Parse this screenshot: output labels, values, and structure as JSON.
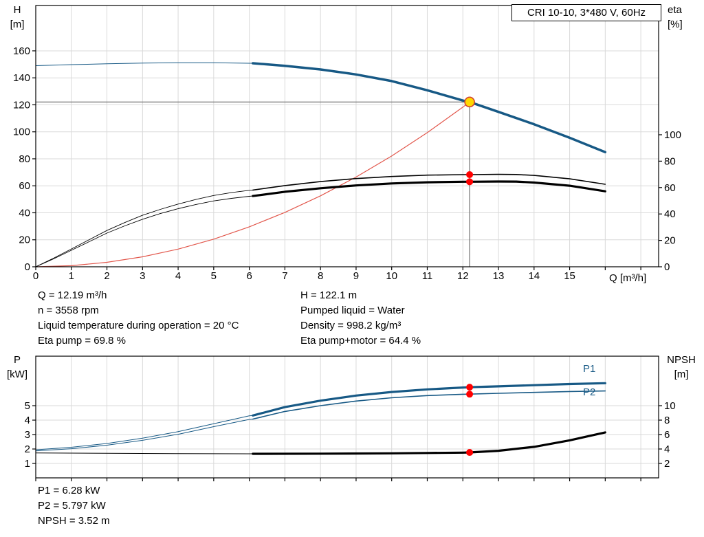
{
  "title_box": "CRI 10-10, 3*480 V, 60Hz",
  "axis_labels": {
    "h": "H",
    "h_unit": "[m]",
    "eta": "eta",
    "eta_unit": "[%]",
    "q": "Q [m³/h]",
    "p": "P",
    "p_unit": "[kW]",
    "npsh": "NPSH",
    "npsh_unit": "[m]"
  },
  "series_labels": {
    "p1": "P1",
    "p2": "P2"
  },
  "info_top_left": [
    "Q = 12.19 m³/h",
    "n = 3558 rpm",
    "Liquid temperature during operation = 20 °C",
    "Eta pump = 69.8 %"
  ],
  "info_top_right": [
    "H = 122.1 m",
    "Pumped liquid = Water",
    "Density = 998.2 kg/m³",
    "Eta pump+motor = 64.4 %"
  ],
  "info_bottom": [
    "P1 = 6.28 kW",
    "P2 = 5.797 kW",
    "NPSH = 3.52 m"
  ],
  "colors": {
    "curve_blue": "#175985",
    "curve_black": "#000000",
    "curve_red": "#e2574c",
    "dot_red": "#ff0000",
    "duty_fill": "#ffd800",
    "duty_stroke": "#d2422f",
    "grid": "#d9d9d9",
    "axis": "#000000",
    "crosshair": "#707070"
  },
  "chart_data": [
    {
      "id": "qh",
      "type": "line",
      "title": "CRI 10-10, 3*480 V, 60Hz",
      "x": {
        "label": "Q [m³/h]",
        "min": 0,
        "max": 17.5,
        "show_labels": true,
        "ticks": [
          0,
          1,
          2,
          3,
          4,
          5,
          6,
          7,
          8,
          9,
          10,
          11,
          12,
          13,
          14,
          15
        ],
        "grid": [
          1,
          2,
          3,
          4,
          5,
          6,
          7,
          8,
          9,
          10,
          11,
          12,
          13,
          14,
          15,
          16,
          17
        ]
      },
      "left_axis": {
        "label": "H [m]",
        "min": 0,
        "max": 193.6,
        "ticks": [
          0,
          20,
          40,
          60,
          80,
          100,
          120,
          140,
          160
        ]
      },
      "right_axis": {
        "label": "eta [%]",
        "min": 0,
        "max": 197.9,
        "ticks": [
          0,
          20,
          40,
          60,
          80,
          100
        ]
      },
      "crosshair": {
        "q": 12.19,
        "v": 122.1
      },
      "series": [
        {
          "name": "system-curve",
          "axis": "left",
          "color": "#e2574c",
          "width_thin": 1.2,
          "width_thick": 1.2,
          "split": 99,
          "points": [
            [
              0,
              0
            ],
            [
              1,
              0.8
            ],
            [
              2,
              3.3
            ],
            [
              3,
              7.4
            ],
            [
              4,
              13.1
            ],
            [
              5,
              20.5
            ],
            [
              6,
              29.6
            ],
            [
              7,
              40.3
            ],
            [
              8,
              52.6
            ],
            [
              9,
              66.5
            ],
            [
              10,
              82.1
            ],
            [
              11,
              99.4
            ],
            [
              12,
              118.3
            ],
            [
              12.19,
              122.1
            ]
          ]
        },
        {
          "name": "eta-pump",
          "axis": "right",
          "color": "#000000",
          "width_thin": 0.9,
          "width_thick": 1.6,
          "split": 6.1,
          "points": [
            [
              0,
              0
            ],
            [
              0.5,
              6.5
            ],
            [
              1,
              13.5
            ],
            [
              1.5,
              20.5
            ],
            [
              2,
              27.5
            ],
            [
              2.5,
              33.5
            ],
            [
              3,
              39
            ],
            [
              3.5,
              43.5
            ],
            [
              4,
              47.5
            ],
            [
              4.5,
              51
            ],
            [
              5,
              54
            ],
            [
              5.5,
              56.2
            ],
            [
              6,
              57.9
            ],
            [
              6.1,
              58.1
            ],
            [
              7,
              61.5
            ],
            [
              8,
              64.5
            ],
            [
              9,
              66.8
            ],
            [
              10,
              68.4
            ],
            [
              11,
              69.4
            ],
            [
              12,
              69.8
            ],
            [
              12.19,
              69.8
            ],
            [
              13,
              70
            ],
            [
              13.5,
              69.9
            ],
            [
              14,
              69.2
            ],
            [
              15,
              66.6
            ],
            [
              16,
              62.5
            ]
          ]
        },
        {
          "name": "eta-pump-motor",
          "axis": "right",
          "color": "#000000",
          "width_thin": 0.9,
          "width_thick": 3.2,
          "split": 6.1,
          "points": [
            [
              0,
              0
            ],
            [
              0.5,
              6
            ],
            [
              1,
              12.5
            ],
            [
              1.5,
              19
            ],
            [
              2,
              25.5
            ],
            [
              2.5,
              31
            ],
            [
              3,
              36
            ],
            [
              3.5,
              40.3
            ],
            [
              4,
              44
            ],
            [
              4.5,
              47.2
            ],
            [
              5,
              49.9
            ],
            [
              5.5,
              51.8
            ],
            [
              6,
              53.4
            ],
            [
              6.1,
              53.6
            ],
            [
              7,
              56.8
            ],
            [
              8,
              59.5
            ],
            [
              9,
              61.6
            ],
            [
              10,
              63.1
            ],
            [
              11,
              64
            ],
            [
              12,
              64.4
            ],
            [
              12.19,
              64.4
            ],
            [
              13,
              64.6
            ],
            [
              13.5,
              64.5
            ],
            [
              14,
              63.8
            ],
            [
              15,
              61.4
            ],
            [
              16,
              57.2
            ]
          ]
        },
        {
          "name": "head",
          "axis": "left",
          "color": "#175985",
          "width_thin": 1,
          "width_thick": 3.5,
          "split": 6.1,
          "points": [
            [
              0,
              149
            ],
            [
              1,
              149.8
            ],
            [
              2,
              150.4
            ],
            [
              3,
              150.9
            ],
            [
              4,
              151.2
            ],
            [
              5,
              151.2
            ],
            [
              6,
              150.8
            ],
            [
              6.1,
              150.8
            ],
            [
              7,
              148.9
            ],
            [
              8,
              146.2
            ],
            [
              9,
              142.5
            ],
            [
              10,
              137.6
            ],
            [
              11,
              130.8
            ],
            [
              12,
              123.2
            ],
            [
              12.19,
              122.1
            ],
            [
              13,
              114.8
            ],
            [
              14,
              105.6
            ],
            [
              15,
              95.6
            ],
            [
              16,
              85
            ]
          ]
        }
      ],
      "markers": [
        {
          "name": "duty-point",
          "axis": "left",
          "q": 12.19,
          "v": 122.1,
          "r": 7,
          "fill": "#ffd800",
          "stroke": "#d2422f",
          "stroke_width": 1.6
        },
        {
          "name": "eta-pump-dot",
          "axis": "right",
          "q": 12.19,
          "v": 69.8,
          "r": 5,
          "fill": "#ff0000"
        },
        {
          "name": "eta-pump-motor-dot",
          "axis": "right",
          "q": 12.19,
          "v": 64.4,
          "r": 5,
          "fill": "#ff0000"
        }
      ]
    },
    {
      "id": "power-npsh",
      "type": "line",
      "x": {
        "label": "",
        "min": 0,
        "max": 17.5,
        "show_labels": false,
        "ticks": [],
        "grid": [
          1,
          2,
          3,
          4,
          5,
          6,
          7,
          8,
          9,
          10,
          11,
          12,
          13,
          14,
          15,
          16,
          17
        ]
      },
      "left_axis": {
        "label": "P [kW]",
        "min": 0,
        "max": 8.43,
        "ticks": [
          1,
          2,
          3,
          4,
          5
        ]
      },
      "right_axis": {
        "label": "NPSH [m]",
        "min": 0,
        "max": 16.86,
        "ticks": [
          2,
          4,
          6,
          8,
          10
        ]
      },
      "series": [
        {
          "name": "p1",
          "axis": "left",
          "color": "#175985",
          "width_thin": 1,
          "width_thick": 3.2,
          "split": 6.1,
          "points": [
            [
              0,
              1.95
            ],
            [
              1,
              2.12
            ],
            [
              2,
              2.38
            ],
            [
              3,
              2.75
            ],
            [
              4,
              3.2
            ],
            [
              5,
              3.75
            ],
            [
              6,
              4.3
            ],
            [
              6.1,
              4.32
            ],
            [
              7,
              4.9
            ],
            [
              8,
              5.35
            ],
            [
              9,
              5.7
            ],
            [
              10,
              5.95
            ],
            [
              11,
              6.13
            ],
            [
              12,
              6.26
            ],
            [
              12.19,
              6.28
            ],
            [
              13,
              6.34
            ],
            [
              14,
              6.42
            ],
            [
              15,
              6.5
            ],
            [
              16,
              6.56
            ]
          ]
        },
        {
          "name": "p2",
          "axis": "left",
          "color": "#175985",
          "width_thin": 1,
          "width_thick": 1.6,
          "split": 6.1,
          "points": [
            [
              0,
              1.87
            ],
            [
              1,
              2.02
            ],
            [
              2,
              2.26
            ],
            [
              3,
              2.6
            ],
            [
              4,
              3.02
            ],
            [
              5,
              3.55
            ],
            [
              6,
              4.05
            ],
            [
              6.1,
              4.07
            ],
            [
              7,
              4.6
            ],
            [
              8,
              5
            ],
            [
              9,
              5.32
            ],
            [
              10,
              5.55
            ],
            [
              11,
              5.7
            ],
            [
              12,
              5.79
            ],
            [
              12.19,
              5.8
            ],
            [
              13,
              5.86
            ],
            [
              14,
              5.92
            ],
            [
              15,
              5.98
            ],
            [
              16,
              6.02
            ]
          ]
        },
        {
          "name": "npsh",
          "axis": "right",
          "color": "#000000",
          "width_thin": 1,
          "width_thick": 3.2,
          "split": 6.1,
          "points": [
            [
              0,
              3.45
            ],
            [
              2,
              3.4
            ],
            [
              4,
              3.35
            ],
            [
              6,
              3.33
            ],
            [
              6.1,
              3.33
            ],
            [
              8,
              3.35
            ],
            [
              10,
              3.4
            ],
            [
              11,
              3.45
            ],
            [
              12,
              3.5
            ],
            [
              12.19,
              3.52
            ],
            [
              13,
              3.75
            ],
            [
              14,
              4.3
            ],
            [
              15,
              5.2
            ],
            [
              16,
              6.3
            ]
          ]
        }
      ],
      "markers": [
        {
          "name": "p1-dot",
          "axis": "left",
          "q": 12.19,
          "v": 6.28,
          "r": 5,
          "fill": "#ff0000"
        },
        {
          "name": "p2-dot",
          "axis": "left",
          "q": 12.19,
          "v": 5.797,
          "r": 5,
          "fill": "#ff0000"
        },
        {
          "name": "npsh-dot",
          "axis": "right",
          "q": 12.19,
          "v": 3.52,
          "r": 5,
          "fill": "#ff0000"
        }
      ]
    }
  ]
}
